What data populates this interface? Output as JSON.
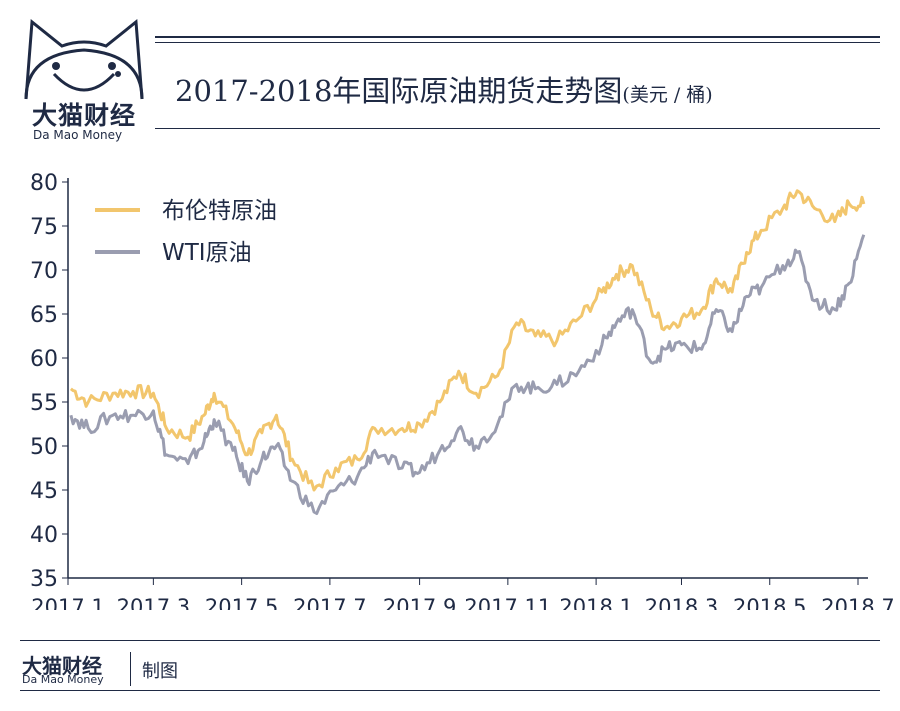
{
  "brand": {
    "name_cn": "大猫财经",
    "name_en": "Da Mao Money"
  },
  "title": {
    "main": "2017-2018年国际原油期货走势图",
    "unit": "(美元 / 桶)"
  },
  "footer": {
    "brand_cn": "大猫财经",
    "brand_en": "Da Mao Money",
    "note": "制图"
  },
  "colors": {
    "brent": "#f2c66d",
    "wti": "#9a9db0",
    "accent": "#1f2a44"
  },
  "chart_data": {
    "type": "line",
    "title": "2017-2018年国际原油期货走势图",
    "xlabel": "",
    "ylabel": "",
    "ylim": [
      35,
      80
    ],
    "yticks": [
      35,
      40,
      45,
      50,
      55,
      60,
      65,
      70,
      75,
      80
    ],
    "xlim": [
      "2017-01",
      "2018-07"
    ],
    "xticks": [
      "2017.1",
      "2017.3",
      "2017.5",
      "2017.7",
      "2017.9",
      "2017.11",
      "2018.1",
      "2018.3",
      "2018.5",
      "2018.7"
    ],
    "grid": false,
    "legend": "top-left",
    "series": [
      {
        "name": "布伦特原油",
        "color": "#f2c66d",
        "points": [
          [
            "2017-01-03",
            56.5
          ],
          [
            "2017-01-15",
            55.0
          ],
          [
            "2017-02-01",
            56.0
          ],
          [
            "2017-02-15",
            56.2
          ],
          [
            "2017-03-01",
            56.0
          ],
          [
            "2017-03-10",
            52.0
          ],
          [
            "2017-03-25",
            51.0
          ],
          [
            "2017-04-05",
            53.5
          ],
          [
            "2017-04-12",
            56.0
          ],
          [
            "2017-04-25",
            52.5
          ],
          [
            "2017-05-05",
            49.0
          ],
          [
            "2017-05-15",
            51.5
          ],
          [
            "2017-05-25",
            53.5
          ],
          [
            "2017-06-05",
            48.5
          ],
          [
            "2017-06-20",
            45.0
          ],
          [
            "2017-07-05",
            47.5
          ],
          [
            "2017-07-20",
            48.5
          ],
          [
            "2017-08-01",
            52.0
          ],
          [
            "2017-08-20",
            52.0
          ],
          [
            "2017-09-01",
            52.5
          ],
          [
            "2017-09-15",
            55.0
          ],
          [
            "2017-09-28",
            58.5
          ],
          [
            "2017-10-10",
            56.0
          ],
          [
            "2017-10-25",
            58.0
          ],
          [
            "2017-11-07",
            64.0
          ],
          [
            "2017-11-20",
            62.5
          ],
          [
            "2017-12-05",
            62.0
          ],
          [
            "2017-12-20",
            64.5
          ],
          [
            "2018-01-05",
            67.5
          ],
          [
            "2018-01-15",
            69.5
          ],
          [
            "2018-01-26",
            70.5
          ],
          [
            "2018-02-08",
            65.5
          ],
          [
            "2018-02-18",
            63.5
          ],
          [
            "2018-03-01",
            64.5
          ],
          [
            "2018-03-15",
            65.5
          ],
          [
            "2018-03-25",
            69.0
          ],
          [
            "2018-04-05",
            67.5
          ],
          [
            "2018-04-15",
            72.0
          ],
          [
            "2018-04-25",
            74.5
          ],
          [
            "2018-05-10",
            77.0
          ],
          [
            "2018-05-20",
            79.0
          ],
          [
            "2018-06-01",
            77.0
          ],
          [
            "2018-06-15",
            75.5
          ],
          [
            "2018-06-25",
            77.5
          ],
          [
            "2018-07-05",
            77.5
          ]
        ]
      },
      {
        "name": "WTI原油",
        "color": "#9a9db0",
        "points": [
          [
            "2017-01-03",
            53.5
          ],
          [
            "2017-01-15",
            52.0
          ],
          [
            "2017-02-01",
            53.5
          ],
          [
            "2017-02-15",
            53.5
          ],
          [
            "2017-03-01",
            54.0
          ],
          [
            "2017-03-10",
            49.0
          ],
          [
            "2017-03-25",
            48.0
          ],
          [
            "2017-04-05",
            50.5
          ],
          [
            "2017-04-12",
            53.0
          ],
          [
            "2017-04-25",
            49.5
          ],
          [
            "2017-05-05",
            46.0
          ],
          [
            "2017-05-15",
            48.5
          ],
          [
            "2017-05-25",
            50.0
          ],
          [
            "2017-06-05",
            46.0
          ],
          [
            "2017-06-20",
            42.5
          ],
          [
            "2017-07-05",
            45.0
          ],
          [
            "2017-07-20",
            46.5
          ],
          [
            "2017-08-01",
            49.5
          ],
          [
            "2017-08-20",
            47.5
          ],
          [
            "2017-09-01",
            47.0
          ],
          [
            "2017-09-15",
            49.5
          ],
          [
            "2017-09-28",
            52.0
          ],
          [
            "2017-10-10",
            50.0
          ],
          [
            "2017-10-25",
            52.5
          ],
          [
            "2017-11-07",
            57.0
          ],
          [
            "2017-11-20",
            56.5
          ],
          [
            "2017-12-05",
            57.0
          ],
          [
            "2017-12-20",
            58.5
          ],
          [
            "2018-01-05",
            61.5
          ],
          [
            "2018-01-15",
            64.0
          ],
          [
            "2018-01-26",
            65.5
          ],
          [
            "2018-02-08",
            59.5
          ],
          [
            "2018-02-18",
            61.0
          ],
          [
            "2018-03-01",
            61.5
          ],
          [
            "2018-03-15",
            61.0
          ],
          [
            "2018-03-25",
            65.5
          ],
          [
            "2018-04-05",
            63.0
          ],
          [
            "2018-04-15",
            67.0
          ],
          [
            "2018-04-25",
            68.0
          ],
          [
            "2018-05-10",
            70.5
          ],
          [
            "2018-05-20",
            72.0
          ],
          [
            "2018-06-01",
            66.5
          ],
          [
            "2018-06-15",
            65.5
          ],
          [
            "2018-06-25",
            68.5
          ],
          [
            "2018-07-05",
            74.0
          ]
        ]
      }
    ]
  }
}
